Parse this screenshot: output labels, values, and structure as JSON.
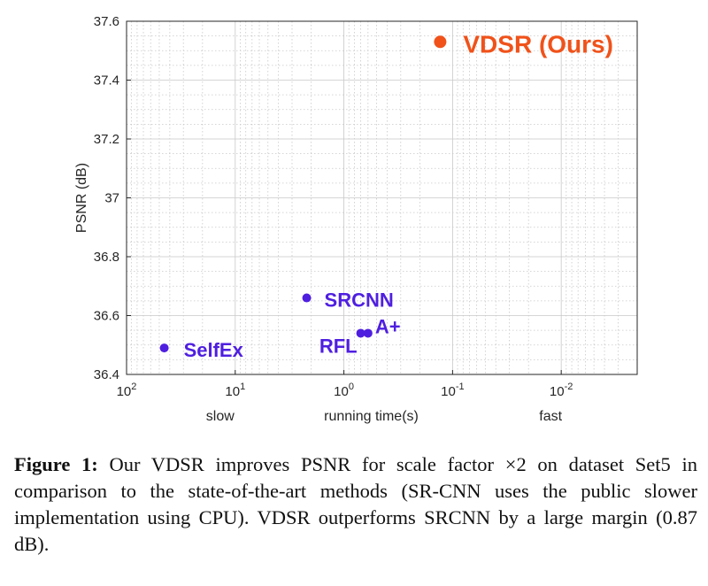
{
  "chart_data": {
    "type": "scatter",
    "xscale": "log",
    "xdirection": "reversed",
    "xlim": [
      0.002,
      100
    ],
    "ylim": [
      36.4,
      37.6
    ],
    "xticks": [
      {
        "value": 100,
        "base": "10",
        "exp": "2"
      },
      {
        "value": 10,
        "base": "10",
        "exp": "1"
      },
      {
        "value": 1,
        "base": "10",
        "exp": "0"
      },
      {
        "value": 0.1,
        "base": "10",
        "exp": "-1"
      },
      {
        "value": 0.01,
        "base": "10",
        "exp": "-2"
      }
    ],
    "yticks": [
      "36.4",
      "36.6",
      "36.8",
      "37",
      "37.2",
      "37.4",
      "37.6"
    ],
    "ylabel": "PSNR (dB)",
    "xlabel": "running time(s)",
    "xlabel_left": "slow",
    "xlabel_right": "fast",
    "grid": true,
    "points": [
      {
        "label": "SelfEx",
        "x": 45,
        "y": 36.49,
        "color": "#4f1fe0"
      },
      {
        "label": "SRCNN",
        "x": 2.2,
        "y": 36.66,
        "color": "#4f1fe0"
      },
      {
        "label": "RFL",
        "x": 0.7,
        "y": 36.54,
        "color": "#4f1fe0"
      },
      {
        "label": "A+",
        "x": 0.6,
        "y": 36.54,
        "color": "#4f1fe0"
      },
      {
        "label": "VDSR (Ours)",
        "x": 0.13,
        "y": 37.53,
        "color": "#f0521a"
      }
    ]
  },
  "caption": {
    "figure_label": "Figure 1:",
    "text": "Our VDSR improves PSNR for scale factor ×2 on dataset Set5 in comparison to the state-of-the-art methods (SR-CNN uses the public slower implementation using CPU). VDSR outperforms SRCNN by a large margin (0.87 dB)."
  }
}
